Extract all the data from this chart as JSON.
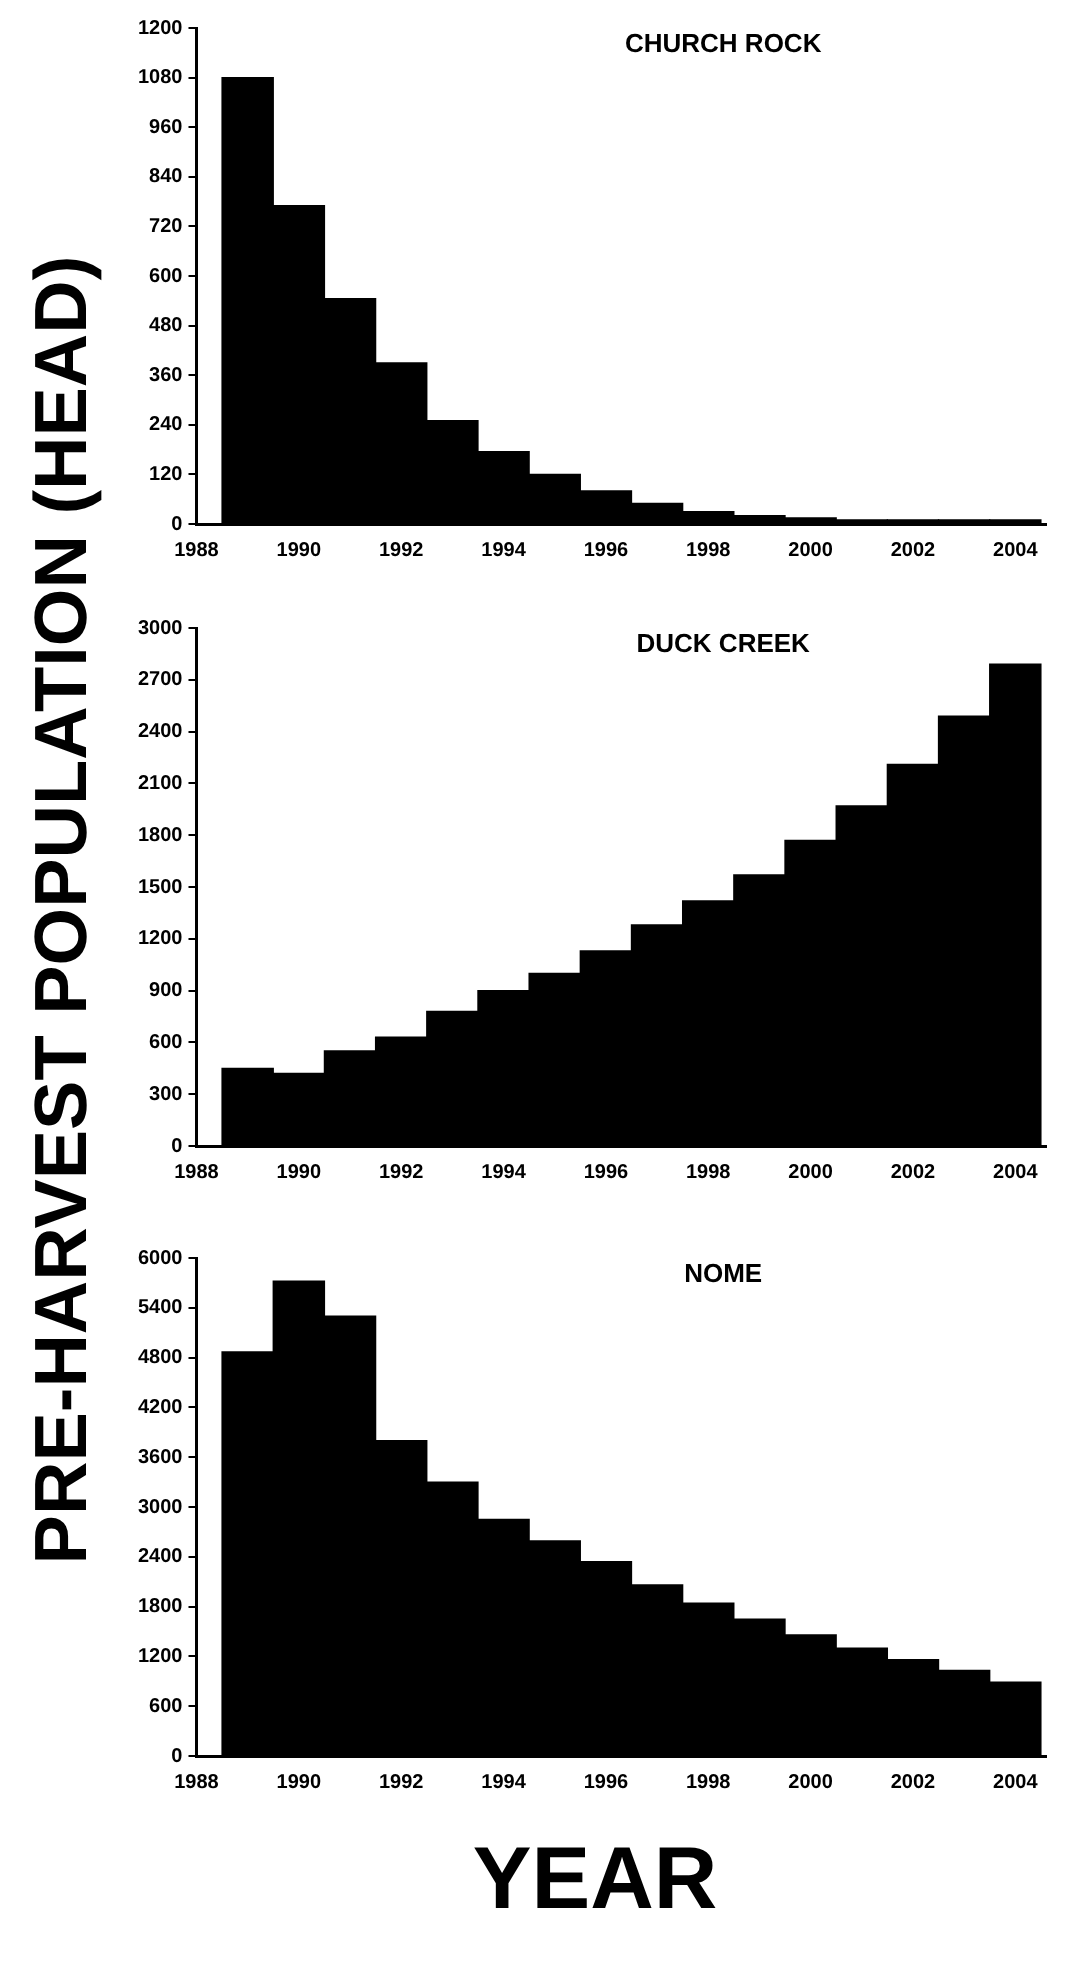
{
  "chart_data": [
    {
      "type": "bar",
      "title": "CHURCH ROCK",
      "x": [
        1989,
        1990,
        1991,
        1992,
        1993,
        1994,
        1995,
        1996,
        1997,
        1998,
        1999,
        2000,
        2001,
        2002,
        2003,
        2004
      ],
      "series": [
        {
          "color": "#000000",
          "values": [
            1080,
            770,
            545,
            390,
            250,
            175,
            120,
            80,
            50,
            30,
            20,
            15,
            10,
            10,
            10,
            10
          ]
        }
      ],
      "xlim": [
        1988,
        2004.6
      ],
      "xticks": [
        1988,
        1990,
        1992,
        1994,
        1996,
        1998,
        2000,
        2002,
        2004
      ],
      "ylim": [
        0,
        1200
      ],
      "yticks": [
        0,
        120,
        240,
        360,
        480,
        600,
        720,
        840,
        960,
        1080,
        1200
      ],
      "grid": false,
      "legend": false
    },
    {
      "type": "bar",
      "title": "DUCK CREEK",
      "ylabel": "PRE-HARVEST POPULATION (HEAD)",
      "x": [
        1989,
        1990,
        1991,
        1992,
        1993,
        1994,
        1995,
        1996,
        1997,
        1998,
        1999,
        2000,
        2001,
        2002,
        2003,
        2004
      ],
      "series": [
        {
          "color": "#000000",
          "values": [
            450,
            420,
            550,
            630,
            780,
            900,
            1000,
            1130,
            1280,
            1420,
            1570,
            1770,
            1970,
            2210,
            2490,
            2790
          ]
        }
      ],
      "xlim": [
        1988,
        2004.6
      ],
      "xticks": [
        1988,
        1990,
        1992,
        1994,
        1996,
        1998,
        2000,
        2002,
        2004
      ],
      "ylim": [
        0,
        3000
      ],
      "yticks": [
        0,
        300,
        600,
        900,
        1200,
        1500,
        1800,
        2100,
        2400,
        2700,
        3000
      ],
      "grid": false,
      "legend": false
    },
    {
      "type": "bar",
      "title": "NOME",
      "xlabel": "YEAR",
      "x": [
        1989,
        1990,
        1991,
        1992,
        1993,
        1994,
        1995,
        1996,
        1997,
        1998,
        1999,
        2000,
        2001,
        2002,
        2003,
        2004
      ],
      "series": [
        {
          "color": "#000000",
          "values": [
            4870,
            5720,
            5300,
            3800,
            3300,
            2850,
            2590,
            2340,
            2060,
            1840,
            1650,
            1460,
            1300,
            1160,
            1030,
            890
          ]
        }
      ],
      "xlim": [
        1988,
        2004.6
      ],
      "xticks": [
        1988,
        1990,
        1992,
        1994,
        1996,
        1998,
        2000,
        2002,
        2004
      ],
      "ylim": [
        0,
        6000
      ],
      "yticks": [
        0,
        600,
        1200,
        1800,
        2400,
        3000,
        3600,
        4200,
        4800,
        5400,
        6000
      ],
      "grid": false,
      "legend": false
    }
  ]
}
